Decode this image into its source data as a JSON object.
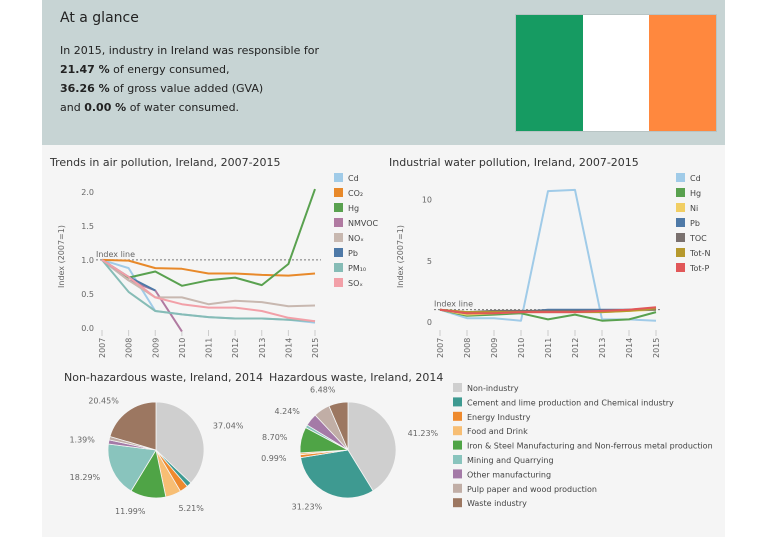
{
  "glance": {
    "title": "At a glance",
    "line1": "In 2015, industry in Ireland was responsible for",
    "energy_pct": "21.47 %",
    "energy_text": " of energy consumed,",
    "gva_pct": "36.26 %",
    "gva_text": " of gross value added (GVA)",
    "water_prefix": "and ",
    "water_pct": "0.00 %",
    "water_text": " of water consumed."
  },
  "flag_colors": [
    "#169b62",
    "#ffffff",
    "#ff883e"
  ],
  "chart_data": [
    {
      "type": "line",
      "title": "Trends in air pollution, Ireland, 2007-2015",
      "ylabel": "Index (2007=1)",
      "xlabel": "",
      "x": [
        "2007",
        "2008",
        "2009",
        "2010",
        "2011",
        "2012",
        "2013",
        "2014",
        "2015"
      ],
      "ylim": [
        0,
        2.1
      ],
      "yticks": [
        "0.0",
        "0.5",
        "1.0",
        "1.5",
        "2.0"
      ],
      "ytick_values": [
        0,
        0.5,
        1,
        1.5,
        2
      ],
      "reference_line": {
        "label": "Index line",
        "value": 1
      },
      "series": [
        {
          "name": "Cd",
          "color": "#a0cbe8",
          "values": [
            1,
            0.88,
            0.25,
            0.2,
            0.16,
            0.14,
            0.14,
            0.12,
            0.08
          ]
        },
        {
          "name": "CO₂",
          "color": "#e8892a",
          "values": [
            1,
            0.99,
            0.88,
            0.87,
            0.8,
            0.8,
            0.78,
            0.77,
            0.8
          ]
        },
        {
          "name": "Hg",
          "color": "#59a14f",
          "values": [
            1,
            0.74,
            0.83,
            0.62,
            0.7,
            0.74,
            0.63,
            0.94,
            2.04
          ]
        },
        {
          "name": "NMVOC",
          "color": "#b07aa1",
          "values": [
            1,
            0.7,
            0.55,
            -0.05,
            null,
            null,
            null,
            null,
            null
          ]
        },
        {
          "name": "NOₓ",
          "color": "#c8b8b0",
          "values": [
            1,
            0.7,
            0.45,
            0.45,
            0.35,
            0.4,
            0.38,
            0.32,
            0.33
          ]
        },
        {
          "name": "Pb",
          "color": "#4e79a7",
          "values": [
            1,
            0.75,
            0.55,
            null,
            null,
            null,
            null,
            null,
            null
          ]
        },
        {
          "name": "PM₁₀",
          "color": "#86bcb6",
          "values": [
            1,
            0.53,
            0.25,
            0.2,
            0.16,
            0.14,
            0.14,
            0.12,
            0.1
          ]
        },
        {
          "name": "SOₓ",
          "color": "#f2a0a8",
          "values": [
            1,
            0.75,
            0.45,
            0.35,
            0.3,
            0.3,
            0.25,
            0.15,
            0.1
          ]
        }
      ]
    },
    {
      "type": "line",
      "title": "Industrial water pollution, Ireland, 2007-2015",
      "ylabel": "Index (2007=1)",
      "xlabel": "",
      "x": [
        "2007",
        "2008",
        "2009",
        "2010",
        "2011",
        "2012",
        "2013",
        "2014",
        "2015"
      ],
      "ylim": [
        -0.5,
        11.2
      ],
      "yticks": [
        "0",
        "5",
        "10"
      ],
      "ytick_values": [
        0,
        5,
        10
      ],
      "reference_line": {
        "label": "Index line",
        "value": 1
      },
      "series": [
        {
          "name": "Cd",
          "color": "#a0cbe8",
          "values": [
            1,
            0.3,
            0.3,
            0.1,
            10.7,
            10.8,
            0.2,
            0.2,
            0.1
          ]
        },
        {
          "name": "Hg",
          "color": "#59a14f",
          "values": [
            1,
            0.5,
            0.6,
            0.7,
            0.2,
            0.6,
            0.1,
            0.2,
            0.8
          ]
        },
        {
          "name": "Ni",
          "color": "#f1ce63",
          "values": [
            1,
            0.6,
            0.7,
            0.8,
            0.9,
            0.9,
            0.8,
            0.9,
            1.0
          ]
        },
        {
          "name": "Pb",
          "color": "#4e79a7",
          "values": [
            1,
            0.7,
            0.8,
            0.8,
            1.0,
            1.0,
            1.0,
            1.0,
            1.1
          ]
        },
        {
          "name": "TOC",
          "color": "#79706e",
          "values": [
            1,
            0.8,
            0.9,
            0.9,
            0.9,
            0.9,
            0.9,
            1.0,
            1.0
          ]
        },
        {
          "name": "Tot-N",
          "color": "#b6992d",
          "values": [
            1,
            0.8,
            0.8,
            0.8,
            0.8,
            0.8,
            0.8,
            0.9,
            1.1
          ]
        },
        {
          "name": "Tot-P",
          "color": "#e15759",
          "values": [
            1,
            0.7,
            0.7,
            0.8,
            0.8,
            0.8,
            0.9,
            1.0,
            1.2
          ]
        }
      ]
    },
    {
      "type": "pie",
      "title": "Non-hazardous waste, Ireland, 2014",
      "slices": [
        {
          "name": "Non-industry",
          "value": 37.04,
          "label": "37.04%"
        },
        {
          "name": "Cement and lime production and Chemical industry",
          "value": 1.66,
          "label": ""
        },
        {
          "name": "Energy Industry",
          "value": 2.8,
          "label": ""
        },
        {
          "name": "Food and Drink",
          "value": 5.21,
          "label": "5.21%"
        },
        {
          "name": "Iron & Steel Manufacturing and Non-ferrous metal production",
          "value": 11.99,
          "label": "11.99%"
        },
        {
          "name": "Mining and Quarrying",
          "value": 18.29,
          "label": "18.29%"
        },
        {
          "name": "Other manufacturing",
          "value": 1.39,
          "label": "1.39%"
        },
        {
          "name": "Pulp paper and wood production",
          "value": 1.17,
          "label": ""
        },
        {
          "name": "Waste industry",
          "value": 20.45,
          "label": "20.45%"
        }
      ]
    },
    {
      "type": "pie",
      "title": "Hazardous waste, Ireland, 2014",
      "slices": [
        {
          "name": "Non-industry",
          "value": 41.23,
          "label": "41.23%"
        },
        {
          "name": "Cement and lime production and Chemical industry",
          "value": 31.23,
          "label": "31.23%"
        },
        {
          "name": "Energy Industry",
          "value": 0.99,
          "label": "0.99%"
        },
        {
          "name": "Food and Drink",
          "value": 0.6,
          "label": ""
        },
        {
          "name": "Iron & Steel Manufacturing and Non-ferrous metal production",
          "value": 8.7,
          "label": "8.70%"
        },
        {
          "name": "Mining and Quarrying",
          "value": 1.0,
          "label": ""
        },
        {
          "name": "Other manufacturing",
          "value": 4.24,
          "label": "4.24%"
        },
        {
          "name": "Pulp paper and wood production",
          "value": 5.53,
          "label": ""
        },
        {
          "name": "Waste industry",
          "value": 6.48,
          "label": "6.48%"
        }
      ]
    }
  ],
  "pie_legend": [
    {
      "name": "Non-industry",
      "color": "#cfcfcf"
    },
    {
      "name": "Cement and lime production and Chemical industry",
      "color": "#3e9a91"
    },
    {
      "name": "Energy Industry",
      "color": "#ee8a2e"
    },
    {
      "name": "Food and Drink",
      "color": "#f7be74"
    },
    {
      "name": "Iron & Steel Manufacturing and Non-ferrous metal production",
      "color": "#4fa446"
    },
    {
      "name": "Mining and Quarrying",
      "color": "#89c4bd"
    },
    {
      "name": "Other manufacturing",
      "color": "#a47aa7"
    },
    {
      "name": "Pulp paper and wood production",
      "color": "#c1aea6"
    },
    {
      "name": "Waste industry",
      "color": "#9c7761"
    }
  ]
}
